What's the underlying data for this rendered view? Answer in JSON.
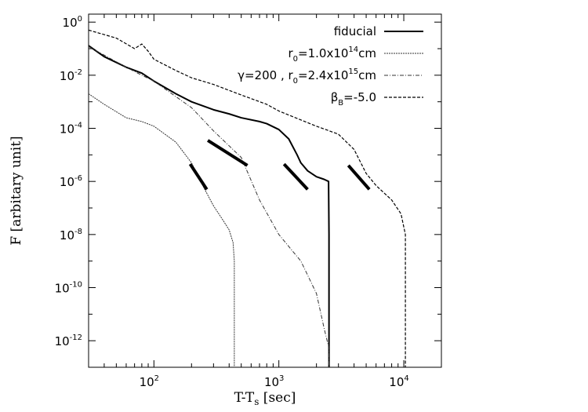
{
  "chart_data": {
    "type": "line",
    "xlabel": "T-T",
    "xlabel_sub": "s",
    "xlabel_unit": "[sec]",
    "ylabel": "F [arbitary unit]",
    "xscale": "log",
    "yscale": "log",
    "xlim": [
      30,
      20000
    ],
    "ylim": [
      1e-13,
      2
    ],
    "grid": false,
    "legend_position": "top-right",
    "xticks": [
      {
        "value": 100,
        "base": "10",
        "exp": "2"
      },
      {
        "value": 1000,
        "base": "10",
        "exp": "3"
      },
      {
        "value": 10000,
        "base": "10",
        "exp": "4"
      }
    ],
    "yticks": [
      {
        "value": 1,
        "base": "10",
        "exp": "0"
      },
      {
        "value": 0.01,
        "base": "10",
        "exp": "-2"
      },
      {
        "value": 0.0001,
        "base": "10",
        "exp": "-4"
      },
      {
        "value": 1e-06,
        "base": "10",
        "exp": "-6"
      },
      {
        "value": 1e-08,
        "base": "10",
        "exp": "-8"
      },
      {
        "value": 1e-10,
        "base": "10",
        "exp": "-10"
      },
      {
        "value": 1e-12,
        "base": "10",
        "exp": "-12"
      }
    ],
    "legend": [
      {
        "label": "fiducial",
        "color": "#000000",
        "width": 2.0,
        "dash": ""
      },
      {
        "label": "r0=1.0x10^14cm",
        "label_parts": [
          "r",
          "0",
          "=1.0x10",
          "14",
          "cm"
        ],
        "color": "#333333",
        "width": 1.0,
        "dash": "2,1"
      },
      {
        "label": "γ=200 , r0=2.4x10^15cm",
        "label_parts": [
          "γ=200 , r",
          "0",
          "=2.4x10",
          "15",
          "cm"
        ],
        "color": "#333333",
        "width": 1.0,
        "dash": "5,2,1,2"
      },
      {
        "label": "βB=-5.0",
        "label_parts": [
          "β",
          "B",
          "=-5.0"
        ],
        "color": "#000000",
        "width": 1.2,
        "dash": "4,2"
      }
    ],
    "series": [
      {
        "color": "#000000",
        "width": 2.0,
        "dash": "",
        "x": [
          30,
          40,
          60,
          80,
          100,
          150,
          200,
          300,
          400,
          500,
          700,
          800,
          1000,
          1200,
          1400,
          1500,
          1700,
          2000,
          2300,
          2500,
          2520,
          2520
        ],
        "y": [
          0.13,
          0.05,
          0.02,
          0.012,
          0.006,
          0.002,
          0.001,
          0.0005,
          0.00035,
          0.00025,
          0.00018,
          0.00015,
          9e-05,
          4e-05,
          1e-05,
          5e-06,
          2.5e-06,
          1.5e-06,
          1.2e-06,
          1e-06,
          1e-08,
          1e-13
        ]
      },
      {
        "color": "#333333",
        "width": 1.0,
        "dash": "2,1",
        "x": [
          30,
          40,
          60,
          80,
          100,
          150,
          200,
          250,
          300,
          350,
          400,
          430,
          440,
          440
        ],
        "y": [
          0.002,
          0.0008,
          0.00025,
          0.00018,
          0.00012,
          3e-05,
          5e-06,
          6e-07,
          1.2e-07,
          4e-08,
          1.5e-08,
          5e-09,
          1e-09,
          1e-13
        ]
      },
      {
        "color": "#333333",
        "width": 1.0,
        "dash": "5,2,1,2",
        "x": [
          30,
          60,
          80,
          100,
          200,
          300,
          500,
          700,
          1000,
          1500,
          2000,
          2300,
          2500,
          2520
        ],
        "y": [
          0.12,
          0.02,
          0.01,
          0.006,
          0.0006,
          8e-05,
          8e-06,
          2e-07,
          1e-08,
          1e-09,
          6e-11,
          3e-12,
          6e-13,
          1e-13
        ]
      },
      {
        "color": "#000000",
        "width": 1.2,
        "dash": "4,2",
        "x": [
          30,
          50,
          70,
          80,
          90,
          100,
          150,
          200,
          300,
          500,
          800,
          1000,
          2000,
          3000,
          4000,
          5000,
          6000,
          8000,
          9500,
          10300,
          10300
        ],
        "y": [
          0.5,
          0.25,
          0.1,
          0.15,
          0.08,
          0.04,
          0.015,
          0.008,
          0.0045,
          0.0018,
          0.0008,
          0.00045,
          0.00012,
          6e-05,
          1.6e-05,
          2e-06,
          7e-07,
          2e-07,
          6e-08,
          1e-08,
          1e-13
        ]
      }
    ],
    "thick_segments": [
      {
        "x": [
          195,
          265
        ],
        "y": [
          4.5e-06,
          5e-07
        ]
      },
      {
        "x": [
          270,
          560
        ],
        "y": [
          3.5e-05,
          4e-06
        ]
      },
      {
        "x": [
          1100,
          1700
        ],
        "y": [
          4.5e-06,
          5e-07
        ]
      },
      {
        "x": [
          3600,
          5300
        ],
        "y": [
          4e-06,
          5e-07
        ]
      }
    ]
  }
}
